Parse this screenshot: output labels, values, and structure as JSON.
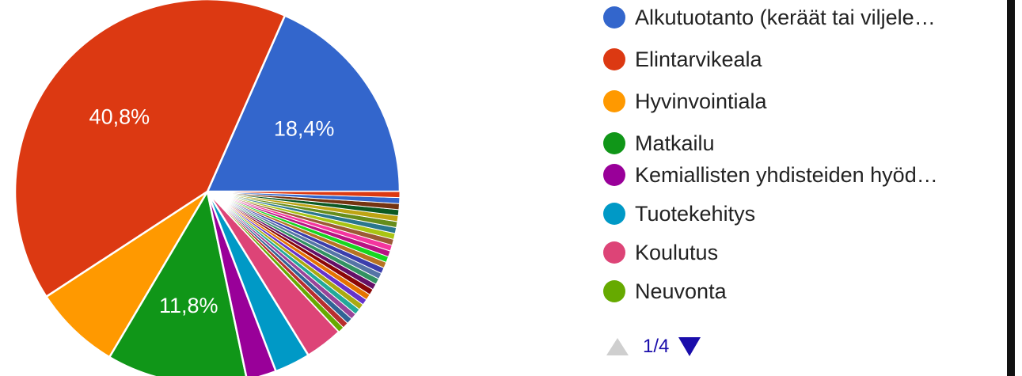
{
  "chart_data": {
    "type": "pie",
    "slices": [
      {
        "label": "Alkutuotanto (keräät tai viljele…",
        "value": 18.4,
        "color": "#3366cc",
        "data_label": "18,4%"
      },
      {
        "label": "Elintarvikeala",
        "value": 40.8,
        "color": "#dc3912",
        "data_label": "40,8%"
      },
      {
        "label": "Hyvinvointiala",
        "value": 7.3,
        "color": "#ff9900",
        "data_label": ""
      },
      {
        "label": "Matkailu",
        "value": 11.8,
        "color": "#109618",
        "data_label": "11,8%"
      },
      {
        "label": "Kemiallisten yhdisteiden hyöd…",
        "value": 2.5,
        "color": "#990099",
        "data_label": ""
      },
      {
        "label": "Tuotekehitys",
        "value": 3.0,
        "color": "#0099c6",
        "data_label": ""
      },
      {
        "label": "Koulutus",
        "value": 3.2,
        "color": "#dd4477",
        "data_label": ""
      },
      {
        "label": "Neuvonta",
        "value": 0.5,
        "color": "#66aa00",
        "data_label": ""
      },
      {
        "label": "",
        "value": 0.5,
        "color": "#b82e2e",
        "data_label": ""
      },
      {
        "label": "",
        "value": 0.5,
        "color": "#316395",
        "data_label": ""
      },
      {
        "label": "",
        "value": 0.5,
        "color": "#994499",
        "data_label": ""
      },
      {
        "label": "",
        "value": 0.5,
        "color": "#22aa99",
        "data_label": ""
      },
      {
        "label": "",
        "value": 0.5,
        "color": "#aaaa11",
        "data_label": ""
      },
      {
        "label": "",
        "value": 0.5,
        "color": "#6633cc",
        "data_label": ""
      },
      {
        "label": "",
        "value": 0.5,
        "color": "#e67300",
        "data_label": ""
      },
      {
        "label": "",
        "value": 0.5,
        "color": "#8b0707",
        "data_label": ""
      },
      {
        "label": "",
        "value": 0.5,
        "color": "#651067",
        "data_label": ""
      },
      {
        "label": "",
        "value": 0.5,
        "color": "#329262",
        "data_label": ""
      },
      {
        "label": "",
        "value": 0.5,
        "color": "#5574a6",
        "data_label": ""
      },
      {
        "label": "",
        "value": 0.5,
        "color": "#3b3eac",
        "data_label": ""
      },
      {
        "label": "",
        "value": 0.5,
        "color": "#b77322",
        "data_label": ""
      },
      {
        "label": "",
        "value": 0.5,
        "color": "#16d620",
        "data_label": ""
      },
      {
        "label": "",
        "value": 0.5,
        "color": "#b91383",
        "data_label": ""
      },
      {
        "label": "",
        "value": 0.5,
        "color": "#f4359e",
        "data_label": ""
      },
      {
        "label": "",
        "value": 0.5,
        "color": "#9c5935",
        "data_label": ""
      },
      {
        "label": "",
        "value": 0.5,
        "color": "#a9c413",
        "data_label": ""
      },
      {
        "label": "",
        "value": 0.5,
        "color": "#2a778d",
        "data_label": ""
      },
      {
        "label": "",
        "value": 0.5,
        "color": "#668d1c",
        "data_label": ""
      },
      {
        "label": "",
        "value": 0.5,
        "color": "#bea413",
        "data_label": ""
      },
      {
        "label": "",
        "value": 0.5,
        "color": "#0c5922",
        "data_label": ""
      },
      {
        "label": "",
        "value": 0.5,
        "color": "#743411",
        "data_label": ""
      },
      {
        "label": "",
        "value": 0.5,
        "color": "#3366cc",
        "data_label": ""
      },
      {
        "label": "",
        "value": 0.5,
        "color": "#dc3912",
        "data_label": ""
      }
    ],
    "legend_position": "right",
    "start_angle_deg": 90,
    "direction": "counterclockwise"
  },
  "legend": {
    "items": [
      {
        "label": "Alkutuotanto (keräät tai viljele…",
        "color": "#3366cc"
      },
      {
        "label": "Elintarvikeala",
        "color": "#dc3912"
      },
      {
        "label": "Hyvinvointiala",
        "color": "#ff9900"
      },
      {
        "label": "Matkailu",
        "color": "#109618"
      },
      {
        "label": "Kemiallisten yhdisteiden hyöd…",
        "color": "#990099"
      },
      {
        "label": "Tuotekehitys",
        "color": "#0099c6"
      },
      {
        "label": "Koulutus",
        "color": "#dd4477"
      },
      {
        "label": "Neuvonta",
        "color": "#66aa00"
      }
    ]
  },
  "pager": {
    "text": "1/4",
    "prev_icon": "triangle-up-icon",
    "next_icon": "triangle-down-icon",
    "active_color": "#1a0dab",
    "disabled_color": "#cfcfcf"
  }
}
